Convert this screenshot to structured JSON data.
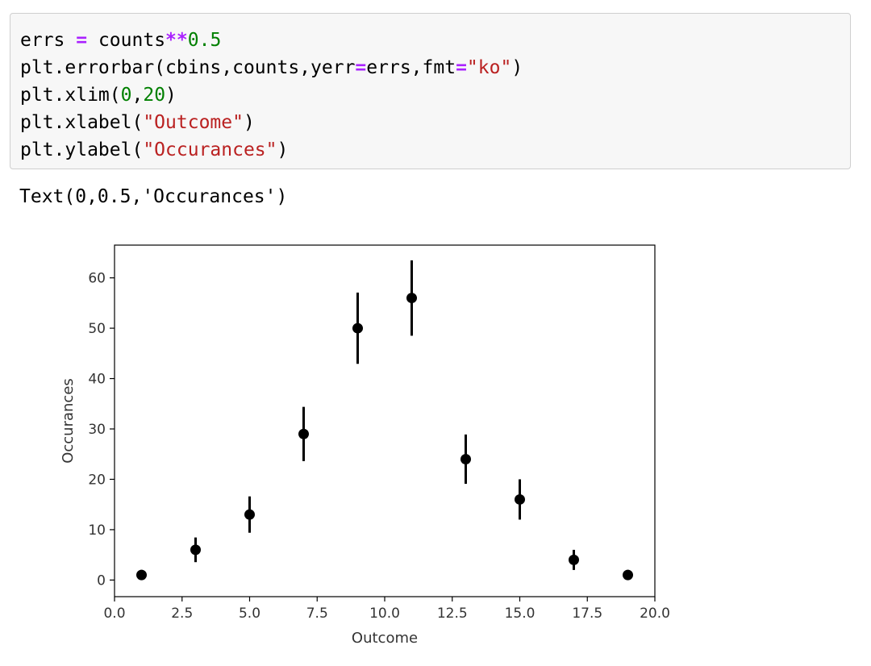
{
  "code": {
    "lines": [
      [
        {
          "t": "errs ",
          "c": ""
        },
        {
          "t": "=",
          "c": "op"
        },
        {
          "t": " counts",
          "c": ""
        },
        {
          "t": "**",
          "c": "op"
        },
        {
          "t": "0.5",
          "c": "num"
        }
      ],
      [
        {
          "t": "plt.errorbar(cbins,counts,yerr",
          "c": ""
        },
        {
          "t": "=",
          "c": "op"
        },
        {
          "t": "errs,fmt",
          "c": ""
        },
        {
          "t": "=",
          "c": "op"
        },
        {
          "t": "\"ko\"",
          "c": "str"
        },
        {
          "t": ")",
          "c": ""
        }
      ],
      [
        {
          "t": "plt.xlim(",
          "c": ""
        },
        {
          "t": "0",
          "c": "num"
        },
        {
          "t": ",",
          "c": ""
        },
        {
          "t": "20",
          "c": "num"
        },
        {
          "t": ")",
          "c": ""
        }
      ],
      [
        {
          "t": "plt.xlabel(",
          "c": ""
        },
        {
          "t": "\"Outcome\"",
          "c": "str"
        },
        {
          "t": ")",
          "c": ""
        }
      ],
      [
        {
          "t": "plt.ylabel(",
          "c": ""
        },
        {
          "t": "\"Occurances\"",
          "c": "str"
        },
        {
          "t": ")",
          "c": ""
        }
      ]
    ]
  },
  "output_text": "Text(0,0.5,'Occurances')",
  "chart_data": {
    "type": "scatter",
    "marker": "errorbar",
    "color": "#000000",
    "x": [
      1,
      3,
      5,
      7,
      9,
      11,
      13,
      15,
      17,
      19
    ],
    "y": [
      1,
      6,
      13,
      29,
      50,
      56,
      24,
      16,
      4,
      1
    ],
    "yerr": [
      1,
      2.449,
      3.606,
      5.385,
      7.071,
      7.483,
      4.899,
      4,
      2,
      1
    ],
    "xlabel": "Outcome",
    "ylabel": "Occurances",
    "xlim": [
      0,
      20
    ],
    "ylim": [
      -3.3,
      66.5
    ],
    "xticks": [
      "0.0",
      "2.5",
      "5.0",
      "7.5",
      "10.0",
      "12.5",
      "15.0",
      "17.5",
      "20.0"
    ],
    "xtick_values": [
      0,
      2.5,
      5,
      7.5,
      10,
      12.5,
      15,
      17.5,
      20
    ],
    "yticks": [
      "0",
      "10",
      "20",
      "30",
      "40",
      "50",
      "60"
    ],
    "ytick_values": [
      0,
      10,
      20,
      30,
      40,
      50,
      60
    ],
    "grid": false
  }
}
